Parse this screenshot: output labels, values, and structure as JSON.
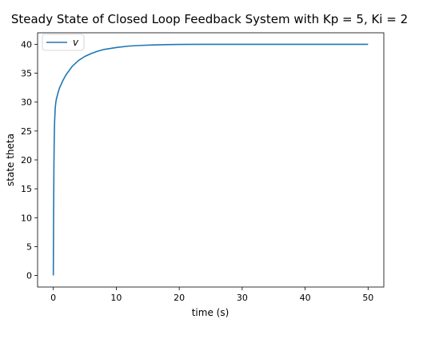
{
  "chart_data": {
    "type": "line",
    "title": "Steady State of Closed Loop Feedback System with Kp = 5, Ki = 2",
    "xlabel": "time (s)",
    "ylabel": "state theta",
    "xlim": [
      -2.5,
      52.5
    ],
    "ylim": [
      -2,
      42
    ],
    "xticks": [
      0,
      10,
      20,
      30,
      40,
      50
    ],
    "yticks": [
      0,
      5,
      10,
      15,
      20,
      25,
      30,
      35,
      40
    ],
    "grid": false,
    "legend_position": "upper-left",
    "series": [
      {
        "name": "v",
        "color": "#1f77b4",
        "x": [
          0,
          0.05,
          0.1,
          0.15,
          0.2,
          0.3,
          0.4,
          0.5,
          0.6,
          0.8,
          1.0,
          1.5,
          2,
          3,
          4,
          5,
          6,
          7,
          8,
          10,
          12,
          14,
          16,
          18,
          20,
          25,
          30,
          35,
          40,
          45,
          50
        ],
        "y": [
          0,
          11.6,
          19.6,
          23.9,
          26.5,
          28.9,
          30.0,
          30.6,
          31.0,
          31.8,
          32.5,
          33.7,
          34.7,
          36.2,
          37.2,
          37.9,
          38.4,
          38.8,
          39.1,
          39.45,
          39.7,
          39.82,
          39.9,
          39.95,
          39.98,
          40,
          40,
          40,
          40,
          40,
          40
        ]
      }
    ]
  }
}
